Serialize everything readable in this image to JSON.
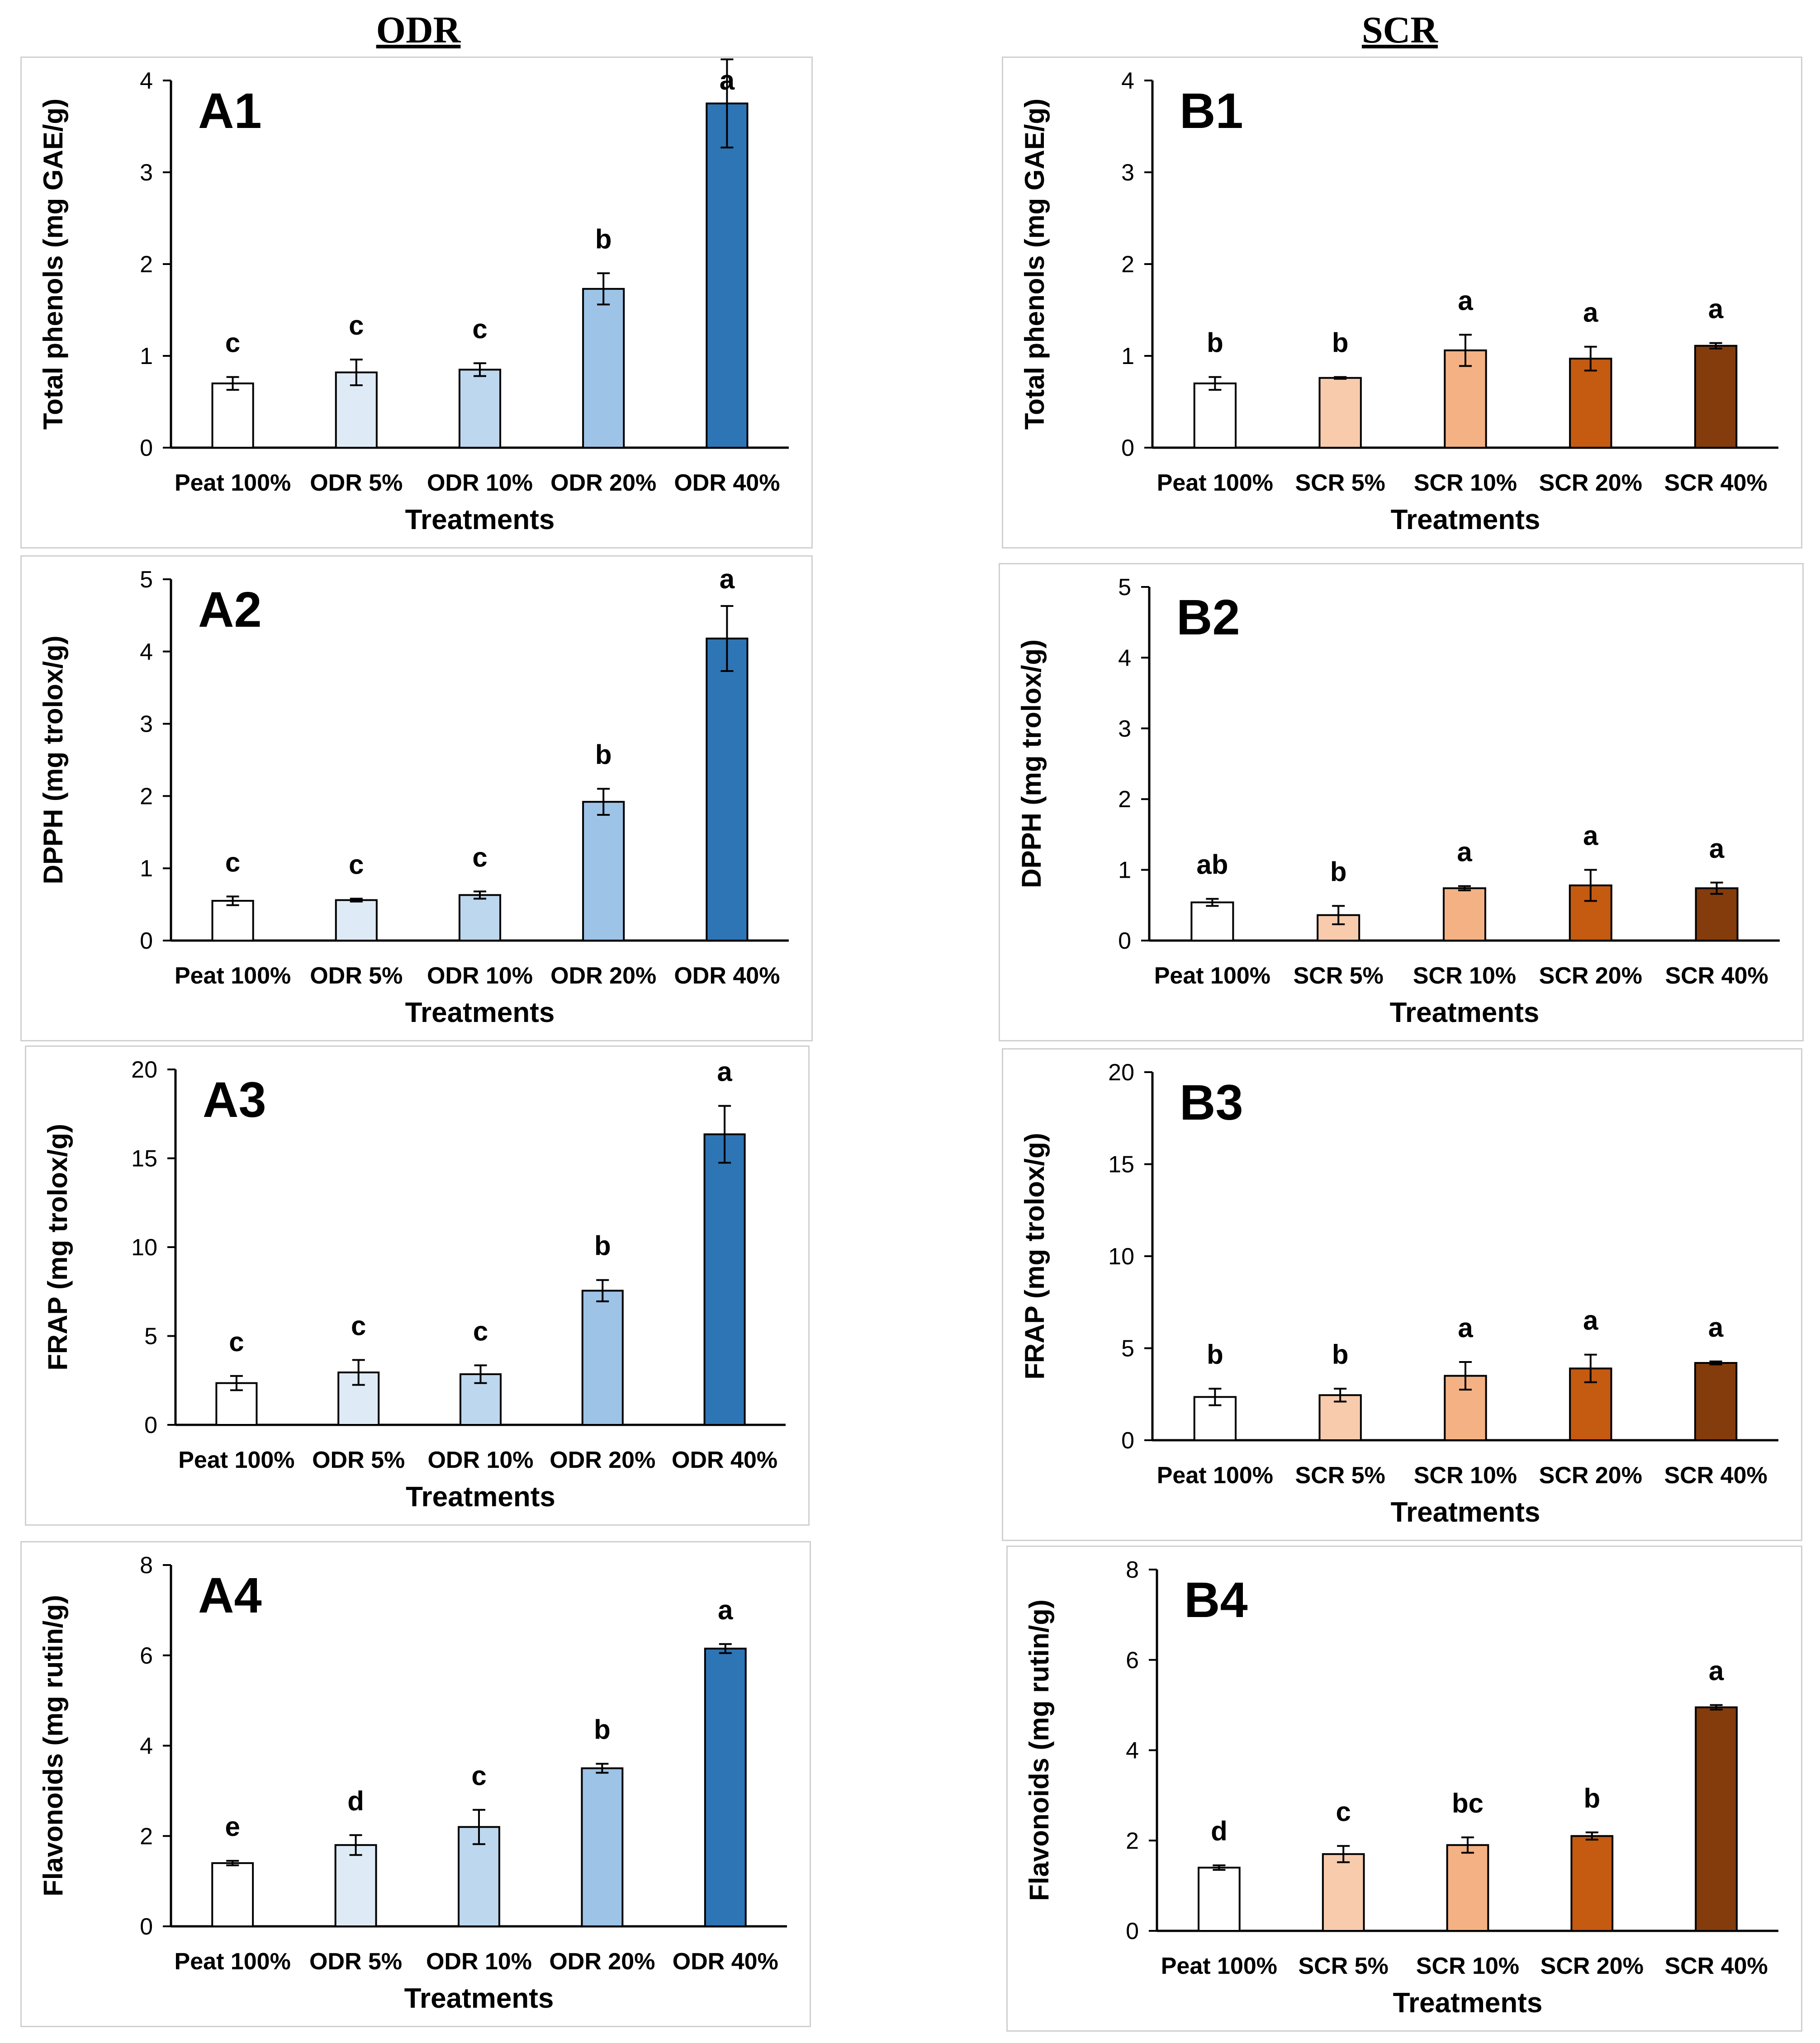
{
  "column_titles": {
    "left": "ODR",
    "right": "SCR"
  },
  "chart_data": [
    {
      "type": "bar",
      "panel": "A1",
      "title": "A1",
      "ylabel": "Total phenols (mg GAE/g)",
      "xlabel": "Treatments",
      "categories": [
        "Peat 100%",
        "ODR 5%",
        "ODR 10%",
        "ODR 20%",
        "ODR 40%"
      ],
      "values": [
        0.7,
        0.82,
        0.85,
        1.73,
        3.75
      ],
      "errors": [
        0.07,
        0.14,
        0.07,
        0.17,
        0.48
      ],
      "letters": [
        "c",
        "c",
        "c",
        "b",
        "a"
      ],
      "colors": [
        "#ffffff",
        "#deebf7",
        "#bdd7ee",
        "#9dc3e6",
        "#2e75b6"
      ],
      "ylim": [
        0,
        4
      ],
      "yticks": [
        "0",
        "1",
        "2",
        "3",
        "4"
      ],
      "grid": false
    },
    {
      "type": "bar",
      "panel": "B1",
      "title": "B1",
      "ylabel": "Total phenols (mg GAE/g)",
      "xlabel": "Treatments",
      "categories": [
        "Peat 100%",
        "SCR 5%",
        "SCR 10%",
        "SCR 20%",
        "SCR 40%"
      ],
      "values": [
        0.7,
        0.76,
        1.06,
        0.97,
        1.11
      ],
      "errors": [
        0.07,
        0.01,
        0.17,
        0.13,
        0.03
      ],
      "letters": [
        "b",
        "b",
        "a",
        "a",
        "a"
      ],
      "colors": [
        "#ffffff",
        "#f8cbad",
        "#f4b183",
        "#c55a11",
        "#843c0c"
      ],
      "ylim": [
        0,
        4
      ],
      "yticks": [
        "0",
        "1",
        "2",
        "3",
        "4"
      ],
      "grid": false
    },
    {
      "type": "bar",
      "panel": "A2",
      "title": "A2",
      "ylabel": "DPPH (mg trolox/g)",
      "xlabel": "Treatments",
      "categories": [
        "Peat 100%",
        "ODR 5%",
        "ODR 10%",
        "ODR 20%",
        "ODR 40%"
      ],
      "values": [
        0.55,
        0.56,
        0.63,
        1.92,
        4.18
      ],
      "errors": [
        0.06,
        0.02,
        0.05,
        0.18,
        0.45
      ],
      "letters": [
        "c",
        "c",
        "c",
        "b",
        "a"
      ],
      "colors": [
        "#ffffff",
        "#deebf7",
        "#bdd7ee",
        "#9dc3e6",
        "#2e75b6"
      ],
      "ylim": [
        0,
        5
      ],
      "yticks": [
        "0",
        "1",
        "2",
        "3",
        "4",
        "5"
      ],
      "grid": false
    },
    {
      "type": "bar",
      "panel": "B2",
      "title": "B2",
      "ylabel": "DPPH (mg trolox/g)",
      "xlabel": "Treatments",
      "categories": [
        "Peat 100%",
        "SCR 5%",
        "SCR 10%",
        "SCR 20%",
        "SCR 40%"
      ],
      "values": [
        0.54,
        0.36,
        0.74,
        0.78,
        0.74
      ],
      "errors": [
        0.05,
        0.13,
        0.03,
        0.22,
        0.08
      ],
      "letters": [
        "ab",
        "b",
        "a",
        "a",
        "a"
      ],
      "colors": [
        "#ffffff",
        "#f8cbad",
        "#f4b183",
        "#c55a11",
        "#843c0c"
      ],
      "ylim": [
        0,
        5
      ],
      "yticks": [
        "0",
        "1",
        "2",
        "3",
        "4",
        "5"
      ],
      "grid": false
    },
    {
      "type": "bar",
      "panel": "A3",
      "title": "A3",
      "ylabel": "FRAP (mg trolox/g)",
      "xlabel": "Treatments",
      "categories": [
        "Peat 100%",
        "ODR 5%",
        "ODR 10%",
        "ODR 20%",
        "ODR 40%"
      ],
      "values": [
        2.35,
        2.95,
        2.85,
        7.55,
        16.35
      ],
      "errors": [
        0.4,
        0.7,
        0.5,
        0.6,
        1.6
      ],
      "letters": [
        "c",
        "c",
        "c",
        "b",
        "a"
      ],
      "colors": [
        "#ffffff",
        "#deebf7",
        "#bdd7ee",
        "#9dc3e6",
        "#2e75b6"
      ],
      "ylim": [
        0,
        20
      ],
      "yticks": [
        "0",
        "5",
        "10",
        "15",
        "20"
      ],
      "grid": false
    },
    {
      "type": "bar",
      "panel": "B3",
      "title": "B3",
      "ylabel": "FRAP (mg trolox/g)",
      "xlabel": "Treatments",
      "categories": [
        "Peat 100%",
        "SCR 5%",
        "SCR 10%",
        "SCR 20%",
        "SCR 40%"
      ],
      "values": [
        2.35,
        2.45,
        3.5,
        3.9,
        4.2
      ],
      "errors": [
        0.45,
        0.35,
        0.75,
        0.75,
        0.08
      ],
      "letters": [
        "b",
        "b",
        "a",
        "a",
        "a"
      ],
      "colors": [
        "#ffffff",
        "#f8cbad",
        "#f4b183",
        "#c55a11",
        "#843c0c"
      ],
      "ylim": [
        0,
        20
      ],
      "yticks": [
        "0",
        "5",
        "10",
        "15",
        "20"
      ],
      "grid": false
    },
    {
      "type": "bar",
      "panel": "A4",
      "title": "A4",
      "ylabel": "Flavonoids (mg rutin/g)",
      "xlabel": "Treatments",
      "categories": [
        "Peat 100%",
        "ODR 5%",
        "ODR 10%",
        "ODR 20%",
        "ODR 40%"
      ],
      "values": [
        1.4,
        1.8,
        2.2,
        3.5,
        6.15
      ],
      "errors": [
        0.05,
        0.22,
        0.38,
        0.1,
        0.1
      ],
      "letters": [
        "e",
        "d",
        "c",
        "b",
        "a"
      ],
      "colors": [
        "#ffffff",
        "#deebf7",
        "#bdd7ee",
        "#9dc3e6",
        "#2e75b6"
      ],
      "ylim": [
        0,
        8
      ],
      "yticks": [
        "0",
        "2",
        "4",
        "6",
        "8"
      ],
      "grid": false
    },
    {
      "type": "bar",
      "panel": "B4",
      "title": "B4",
      "ylabel": "Flavonoids (mg rutin/g)",
      "xlabel": "Treatments",
      "categories": [
        "Peat 100%",
        "SCR 5%",
        "SCR 10%",
        "SCR 20%",
        "SCR 40%"
      ],
      "values": [
        1.4,
        1.7,
        1.9,
        2.1,
        4.95
      ],
      "errors": [
        0.05,
        0.18,
        0.17,
        0.08,
        0.05
      ],
      "letters": [
        "d",
        "c",
        "bc",
        "b",
        "a"
      ],
      "colors": [
        "#ffffff",
        "#f8cbad",
        "#f4b183",
        "#c55a11",
        "#843c0c"
      ],
      "ylim": [
        0,
        8
      ],
      "yticks": [
        "0",
        "2",
        "4",
        "6",
        "8"
      ],
      "grid": false
    }
  ]
}
